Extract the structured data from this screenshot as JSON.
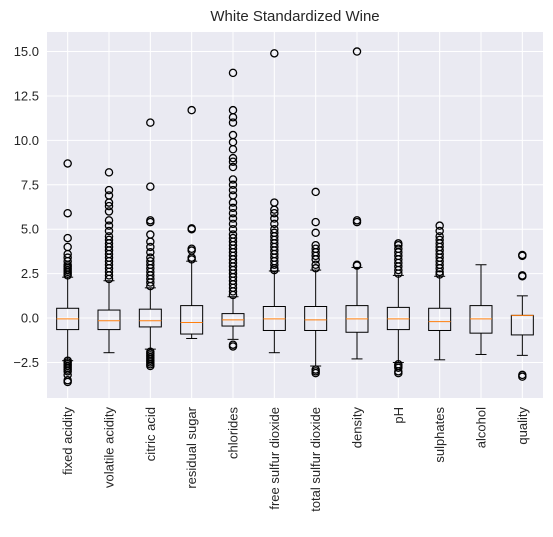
{
  "chart_data": {
    "type": "boxplot",
    "title": "White Standardized Wine",
    "xlabel": "",
    "ylabel": "",
    "ylim": [
      -4.5,
      16.1
    ],
    "yticks": [
      -2.5,
      0.0,
      2.5,
      5.0,
      7.5,
      10.0,
      12.5,
      15.0
    ],
    "ytick_labels": [
      "−2.5",
      "0.0",
      "2.5",
      "5.0",
      "7.5",
      "10.0",
      "12.5",
      "15.0"
    ],
    "grid": true,
    "background": "#eaeaf2",
    "colors": {
      "box": "#000000",
      "median": "#ff7f0e",
      "grid": "#ffffff"
    },
    "categories": [
      "fixed acidity",
      "volatile acidity",
      "citric acid",
      "residual sugar",
      "chlorides",
      "free sulfur dioxide",
      "total sulfur dioxide",
      "density",
      "pH",
      "sulphates",
      "alcohol",
      "quality"
    ],
    "boxes": [
      {
        "whislo": -2.4,
        "q1": -0.65,
        "med": -0.05,
        "q3": 0.55,
        "whishi": 2.3,
        "fliers": [
          -2.4,
          -2.5,
          -2.6,
          -2.7,
          -2.8,
          -2.9,
          -3.0,
          -3.2,
          -3.5,
          -3.6,
          2.4,
          2.5,
          2.6,
          2.7,
          2.8,
          2.9,
          3.0,
          3.2,
          3.4,
          3.6,
          4.0,
          4.5,
          5.9,
          8.7
        ]
      },
      {
        "whislo": -1.95,
        "q1": -0.65,
        "med": -0.15,
        "q3": 0.45,
        "whishi": 2.1,
        "fliers": [
          2.2,
          2.4,
          2.6,
          2.8,
          3.0,
          3.2,
          3.4,
          3.6,
          3.8,
          4.0,
          4.2,
          4.4,
          4.6,
          4.9,
          5.2,
          5.5,
          6.0,
          6.3,
          6.5,
          6.9,
          7.2,
          8.2
        ]
      },
      {
        "whislo": -1.75,
        "q1": -0.5,
        "med": -0.15,
        "q3": 0.5,
        "whishi": 1.7,
        "fliers": [
          -1.9,
          -2.0,
          -2.1,
          -2.2,
          -2.3,
          -2.4,
          -2.5,
          -2.6,
          -2.7,
          1.8,
          2.0,
          2.2,
          2.4,
          2.6,
          2.8,
          3.0,
          3.2,
          3.4,
          3.7,
          4.0,
          4.3,
          4.7,
          5.4,
          5.5,
          7.4,
          11.0
        ]
      },
      {
        "whislo": -1.15,
        "q1": -0.9,
        "med": -0.25,
        "q3": 0.7,
        "whishi": 3.2,
        "fliers": [
          3.3,
          3.4,
          3.8,
          3.9,
          5.0,
          5.05,
          11.7
        ]
      },
      {
        "whislo": -1.2,
        "q1": -0.45,
        "med": -0.1,
        "q3": 0.25,
        "whishi": 1.2,
        "fliers": [
          -1.5,
          -1.6,
          1.3,
          1.5,
          1.7,
          1.9,
          2.1,
          2.3,
          2.5,
          2.7,
          2.9,
          3.1,
          3.3,
          3.5,
          3.7,
          3.9,
          4.1,
          4.3,
          4.5,
          4.7,
          5.0,
          5.3,
          5.6,
          5.9,
          6.2,
          6.5,
          6.9,
          7.2,
          7.5,
          7.8,
          8.5,
          8.8,
          9.0,
          9.5,
          9.9,
          10.3,
          11.0,
          11.3,
          11.7,
          13.8
        ]
      },
      {
        "whislo": -1.95,
        "q1": -0.7,
        "med": -0.05,
        "q3": 0.65,
        "whishi": 2.65,
        "fliers": [
          2.7,
          2.8,
          3.0,
          3.2,
          3.4,
          3.6,
          3.8,
          4.0,
          4.2,
          4.4,
          4.6,
          4.8,
          5.0,
          5.3,
          5.6,
          5.9,
          6.1,
          6.5,
          14.9
        ]
      },
      {
        "whislo": -2.7,
        "q1": -0.7,
        "med": -0.1,
        "q3": 0.65,
        "whishi": 2.7,
        "fliers": [
          -2.9,
          -3.0,
          -3.1,
          2.8,
          3.0,
          3.3,
          3.5,
          3.7,
          3.9,
          4.1,
          4.8,
          5.4,
          7.1
        ]
      },
      {
        "whislo": -2.3,
        "q1": -0.8,
        "med": -0.05,
        "q3": 0.7,
        "whishi": 2.85,
        "fliers": [
          2.95,
          3.0,
          5.4,
          5.5,
          15.0
        ]
      },
      {
        "whislo": -2.5,
        "q1": -0.65,
        "med": -0.05,
        "q3": 0.6,
        "whishi": 2.4,
        "fliers": [
          -2.6,
          -2.7,
          -2.8,
          -3.0,
          -3.1,
          2.5,
          2.7,
          2.9,
          3.1,
          3.3,
          3.5,
          3.7,
          3.9,
          4.1,
          4.2
        ]
      },
      {
        "whislo": -2.35,
        "q1": -0.7,
        "med": -0.2,
        "q3": 0.55,
        "whishi": 2.35,
        "fliers": [
          2.45,
          2.6,
          2.8,
          3.0,
          3.2,
          3.4,
          3.6,
          3.8,
          4.0,
          4.2,
          4.4,
          4.6,
          4.9,
          5.2
        ]
      },
      {
        "whislo": -2.05,
        "q1": -0.85,
        "med": -0.05,
        "q3": 0.7,
        "whishi": 3.0,
        "fliers": []
      },
      {
        "whislo": -2.1,
        "q1": -0.95,
        "med": 0.15,
        "q3": 0.15,
        "whishi": 1.25,
        "fliers": [
          -3.2,
          -3.3,
          2.35,
          2.4,
          3.5,
          3.55
        ]
      }
    ]
  }
}
